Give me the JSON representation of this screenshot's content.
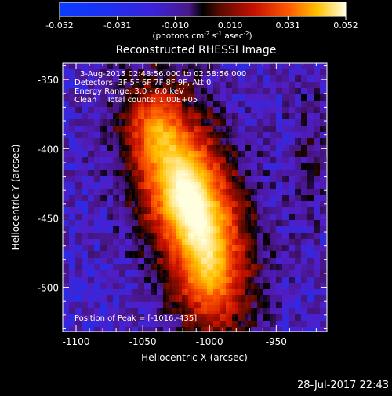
{
  "colorbar": {
    "ticks": [
      "-0.052",
      "-0.031",
      "-0.010",
      "0.010",
      "0.031",
      "0.052"
    ],
    "unit_parts": [
      "(photons cm",
      "-2",
      " s",
      "-1",
      " asec",
      "-2",
      ")"
    ]
  },
  "title": "Reconstructed RHESSI Image",
  "info": {
    "line1": "3-Aug-2015 02:48:56.000 to 02:58:56.000",
    "line2": "Detectors: 3F 5F 6F 7F 8F 9F, Att 0",
    "line3": "Energy Range: 3.0 - 6.0 keV",
    "line4": "Clean    Total counts: 1.00E+05"
  },
  "peak_label": "Position of Peak = [-1016,-435]",
  "timestamp": "28-Jul-2017 22:43",
  "chart_data": {
    "type": "heatmap",
    "colormap": "RHESSI blue-purple-red-yellow-white",
    "color_range": [
      -0.052,
      0.052
    ],
    "xlabel": "Heliocentric X (arcsec)",
    "ylabel": "Heliocentric Y (arcsec)",
    "xlim": [
      -1110,
      -912
    ],
    "ylim": [
      -532,
      -338
    ],
    "xticks": [
      -1100,
      -1050,
      -1000,
      -950
    ],
    "yticks": [
      -350,
      -400,
      -450,
      -500
    ],
    "xtick_labels": [
      "-1100",
      "-1050",
      "-1000",
      "-950"
    ],
    "ytick_labels": [
      "-350",
      "-400",
      "-450",
      "-500"
    ],
    "peak": {
      "x": -1016,
      "y": -435
    }
  }
}
